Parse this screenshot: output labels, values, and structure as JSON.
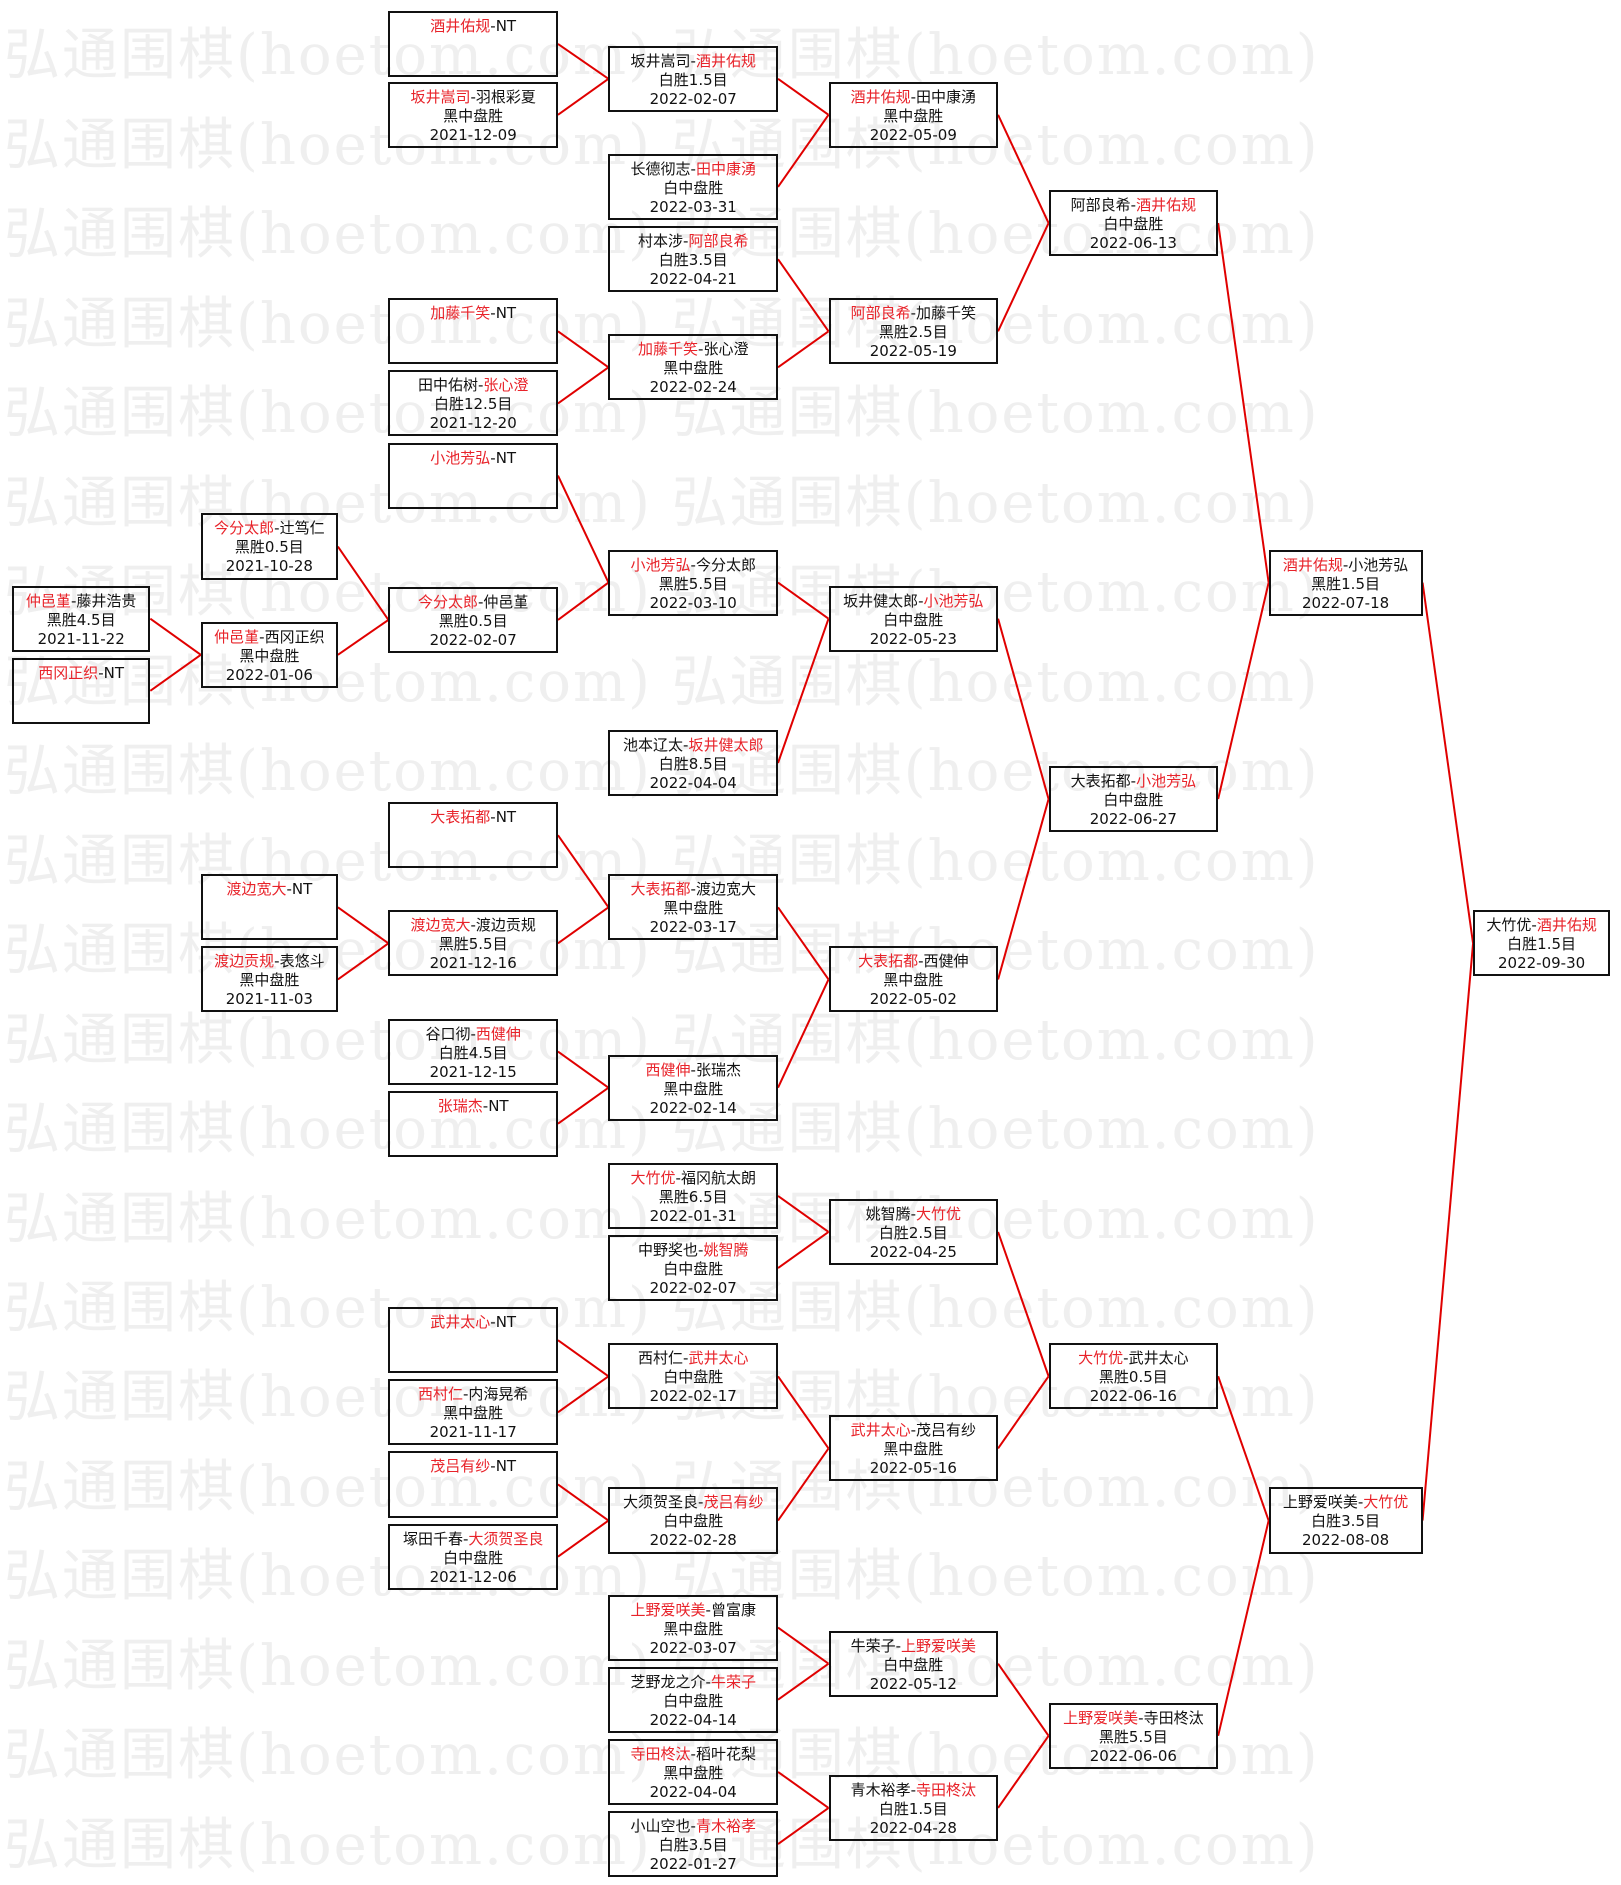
{
  "watermark": "弘通围棋(hoetom.com)",
  "colors": {
    "winner": "#e8232a",
    "connector": "#e00000",
    "border": "#111111",
    "watermark": "#efefef"
  },
  "separator": "-",
  "matches": [
    {
      "p1": "仲邑堇",
      "p2": "藤井浩贵",
      "winner": 1,
      "result": "黑胜4.5目",
      "date": "2021-11-22"
    },
    {
      "p1": "西冈正织",
      "p2": "NT",
      "winner": 1,
      "result": "",
      "date": ""
    },
    {
      "p1": "今分太郎",
      "p2": "辻笃仁",
      "winner": 1,
      "result": "黑胜0.5目",
      "date": "2021-10-28"
    },
    {
      "p1": "仲邑堇",
      "p2": "西冈正织",
      "winner": 1,
      "result": "黑中盘胜",
      "date": "2022-01-06"
    },
    {
      "p1": "渡边宽大",
      "p2": "NT",
      "winner": 1,
      "result": "",
      "date": ""
    },
    {
      "p1": "渡边贡规",
      "p2": "表悠斗",
      "winner": 1,
      "result": "黑中盘胜",
      "date": "2021-11-03"
    },
    {
      "p1": "酒井佑规",
      "p2": "NT",
      "winner": 1,
      "result": "",
      "date": ""
    },
    {
      "p1": "坂井嵩司",
      "p2": "羽根彩夏",
      "winner": 1,
      "result": "黑中盘胜",
      "date": "2021-12-09"
    },
    {
      "p1": "加藤千笑",
      "p2": "NT",
      "winner": 1,
      "result": "",
      "date": ""
    },
    {
      "p1": "田中佑树",
      "p2": "张心澄",
      "winner": 2,
      "result": "白胜12.5目",
      "date": "2021-12-20"
    },
    {
      "p1": "小池芳弘",
      "p2": "NT",
      "winner": 1,
      "result": "",
      "date": ""
    },
    {
      "p1": "今分太郎",
      "p2": "仲邑堇",
      "winner": 1,
      "result": "黑胜0.5目",
      "date": "2022-02-07"
    },
    {
      "p1": "大表拓都",
      "p2": "NT",
      "winner": 1,
      "result": "",
      "date": ""
    },
    {
      "p1": "渡边宽大",
      "p2": "渡边贡规",
      "winner": 1,
      "result": "黑胜5.5目",
      "date": "2021-12-16"
    },
    {
      "p1": "谷口彻",
      "p2": "西健伸",
      "winner": 2,
      "result": "白胜4.5目",
      "date": "2021-12-15"
    },
    {
      "p1": "张瑞杰",
      "p2": "NT",
      "winner": 1,
      "result": "",
      "date": ""
    },
    {
      "p1": "武井太心",
      "p2": "NT",
      "winner": 1,
      "result": "",
      "date": ""
    },
    {
      "p1": "西村仁",
      "p2": "内海晃希",
      "winner": 1,
      "result": "黑中盘胜",
      "date": "2021-11-17"
    },
    {
      "p1": "茂吕有纱",
      "p2": "NT",
      "winner": 1,
      "result": "",
      "date": ""
    },
    {
      "p1": "塚田千春",
      "p2": "大须贺圣良",
      "winner": 2,
      "result": "白中盘胜",
      "date": "2021-12-06"
    },
    {
      "p1": "坂井嵩司",
      "p2": "酒井佑规",
      "winner": 2,
      "result": "白胜1.5目",
      "date": "2022-02-07"
    },
    {
      "p1": "长德彻志",
      "p2": "田中康湧",
      "winner": 2,
      "result": "白中盘胜",
      "date": "2022-03-31"
    },
    {
      "p1": "村本涉",
      "p2": "阿部良希",
      "winner": 2,
      "result": "白胜3.5目",
      "date": "2022-04-21"
    },
    {
      "p1": "加藤千笑",
      "p2": "张心澄",
      "winner": 1,
      "result": "黑中盘胜",
      "date": "2022-02-24"
    },
    {
      "p1": "小池芳弘",
      "p2": "今分太郎",
      "winner": 1,
      "result": "黑胜5.5目",
      "date": "2022-03-10"
    },
    {
      "p1": "池本辽太",
      "p2": "坂井健太郎",
      "winner": 2,
      "result": "白胜8.5目",
      "date": "2022-04-04"
    },
    {
      "p1": "大表拓都",
      "p2": "渡边宽大",
      "winner": 1,
      "result": "黑中盘胜",
      "date": "2022-03-17"
    },
    {
      "p1": "西健伸",
      "p2": "张瑞杰",
      "winner": 1,
      "result": "黑中盘胜",
      "date": "2022-02-14"
    },
    {
      "p1": "大竹优",
      "p2": "福冈航太朗",
      "winner": 1,
      "result": "黑胜6.5目",
      "date": "2022-01-31"
    },
    {
      "p1": "中野奖也",
      "p2": "姚智腾",
      "winner": 2,
      "result": "白中盘胜",
      "date": "2022-02-07"
    },
    {
      "p1": "西村仁",
      "p2": "武井太心",
      "winner": 2,
      "result": "白中盘胜",
      "date": "2022-02-17"
    },
    {
      "p1": "大须贺圣良",
      "p2": "茂吕有纱",
      "winner": 2,
      "result": "白中盘胜",
      "date": "2022-02-28"
    },
    {
      "p1": "上野爱咲美",
      "p2": "曾富康",
      "winner": 1,
      "result": "黑中盘胜",
      "date": "2022-03-07"
    },
    {
      "p1": "芝野龙之介",
      "p2": "牛荣子",
      "winner": 2,
      "result": "白中盘胜",
      "date": "2022-04-14"
    },
    {
      "p1": "寺田柊汰",
      "p2": "稻叶花梨",
      "winner": 1,
      "result": "黑中盘胜",
      "date": "2022-04-04"
    },
    {
      "p1": "小山空也",
      "p2": "青木裕孝",
      "winner": 2,
      "result": "白胜3.5目",
      "date": "2022-01-27"
    },
    {
      "p1": "酒井佑规",
      "p2": "田中康湧",
      "winner": 1,
      "result": "黑中盘胜",
      "date": "2022-05-09"
    },
    {
      "p1": "阿部良希",
      "p2": "加藤千笑",
      "winner": 1,
      "result": "黑胜2.5目",
      "date": "2022-05-19"
    },
    {
      "p1": "坂井健太郎",
      "p2": "小池芳弘",
      "winner": 2,
      "result": "白中盘胜",
      "date": "2022-05-23"
    },
    {
      "p1": "大表拓都",
      "p2": "西健伸",
      "winner": 1,
      "result": "黑中盘胜",
      "date": "2022-05-02"
    },
    {
      "p1": "姚智腾",
      "p2": "大竹优",
      "winner": 2,
      "result": "白胜2.5目",
      "date": "2022-04-25"
    },
    {
      "p1": "武井太心",
      "p2": "茂吕有纱",
      "winner": 1,
      "result": "黑中盘胜",
      "date": "2022-05-16"
    },
    {
      "p1": "牛荣子",
      "p2": "上野爱咲美",
      "winner": 2,
      "result": "白中盘胜",
      "date": "2022-05-12"
    },
    {
      "p1": "青木裕孝",
      "p2": "寺田柊汰",
      "winner": 2,
      "result": "白胜1.5目",
      "date": "2022-04-28"
    },
    {
      "p1": "阿部良希",
      "p2": "酒井佑规",
      "winner": 2,
      "result": "白中盘胜",
      "date": "2022-06-13"
    },
    {
      "p1": "大表拓都",
      "p2": "小池芳弘",
      "winner": 2,
      "result": "白中盘胜",
      "date": "2022-06-27"
    },
    {
      "p1": "大竹优",
      "p2": "武井太心",
      "winner": 1,
      "result": "黑胜0.5目",
      "date": "2022-06-16"
    },
    {
      "p1": "上野爱咲美",
      "p2": "寺田柊汰",
      "winner": 1,
      "result": "黑胜5.5目",
      "date": "2022-06-06"
    },
    {
      "p1": "酒井佑规",
      "p2": "小池芳弘",
      "winner": 1,
      "result": "黑胜1.5目",
      "date": "2022-07-18"
    },
    {
      "p1": "上野爱咲美",
      "p2": "大竹优",
      "winner": 2,
      "result": "白胜3.5目",
      "date": "2022-08-08"
    },
    {
      "p1": "大竹优",
      "p2": "酒井佑规",
      "winner": 2,
      "result": "白胜1.5目",
      "date": "2022-09-30"
    }
  ]
}
